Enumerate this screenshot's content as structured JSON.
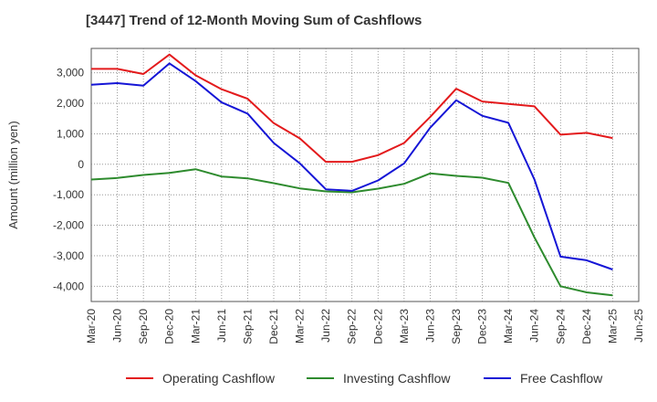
{
  "chart_data": {
    "type": "line",
    "title": "[3447]  Trend of 12-Month Moving Sum of Cashflows",
    "xlabel": "",
    "ylabel": "Amount (million yen)",
    "ylim": [
      -4500,
      3800
    ],
    "yticks": [
      3000,
      2000,
      1000,
      0,
      -1000,
      -2000,
      -3000,
      -4000
    ],
    "ytick_labels": [
      "3,000",
      "2,000",
      "1,000",
      "0",
      "-1,000",
      "-2,000",
      "-3,000",
      "-4,000"
    ],
    "categories": [
      "Mar-20",
      "Jun-20",
      "Sep-20",
      "Dec-20",
      "Mar-21",
      "Jun-21",
      "Sep-21",
      "Dec-21",
      "Mar-22",
      "Jun-22",
      "Sep-22",
      "Dec-22",
      "Mar-23",
      "Jun-23",
      "Sep-23",
      "Dec-23",
      "Mar-24",
      "Jun-24",
      "Sep-24",
      "Dec-24",
      "Mar-25",
      "Jun-25"
    ],
    "grid": true,
    "legend_position": "bottom",
    "series": [
      {
        "name": "Operating Cashflow",
        "color": "#e31a1c",
        "values": [
          3130,
          3130,
          2960,
          3600,
          2920,
          2460,
          2150,
          1350,
          850,
          80,
          80,
          300,
          700,
          1550,
          2480,
          2060,
          1980,
          1900,
          970,
          1030,
          860,
          null
        ]
      },
      {
        "name": "Investing Cashflow",
        "color": "#2e8b2e",
        "values": [
          -500,
          -450,
          -350,
          -280,
          -160,
          -400,
          -460,
          -620,
          -790,
          -890,
          -920,
          -800,
          -640,
          -300,
          -380,
          -440,
          -610,
          -2400,
          -4000,
          -4200,
          -4300,
          null
        ]
      },
      {
        "name": "Free Cashflow",
        "color": "#1515d6",
        "values": [
          2610,
          2660,
          2580,
          3310,
          2730,
          2030,
          1660,
          700,
          30,
          -820,
          -870,
          -530,
          30,
          1200,
          2100,
          1590,
          1360,
          -500,
          -3030,
          -3150,
          -3450,
          null
        ]
      }
    ]
  }
}
